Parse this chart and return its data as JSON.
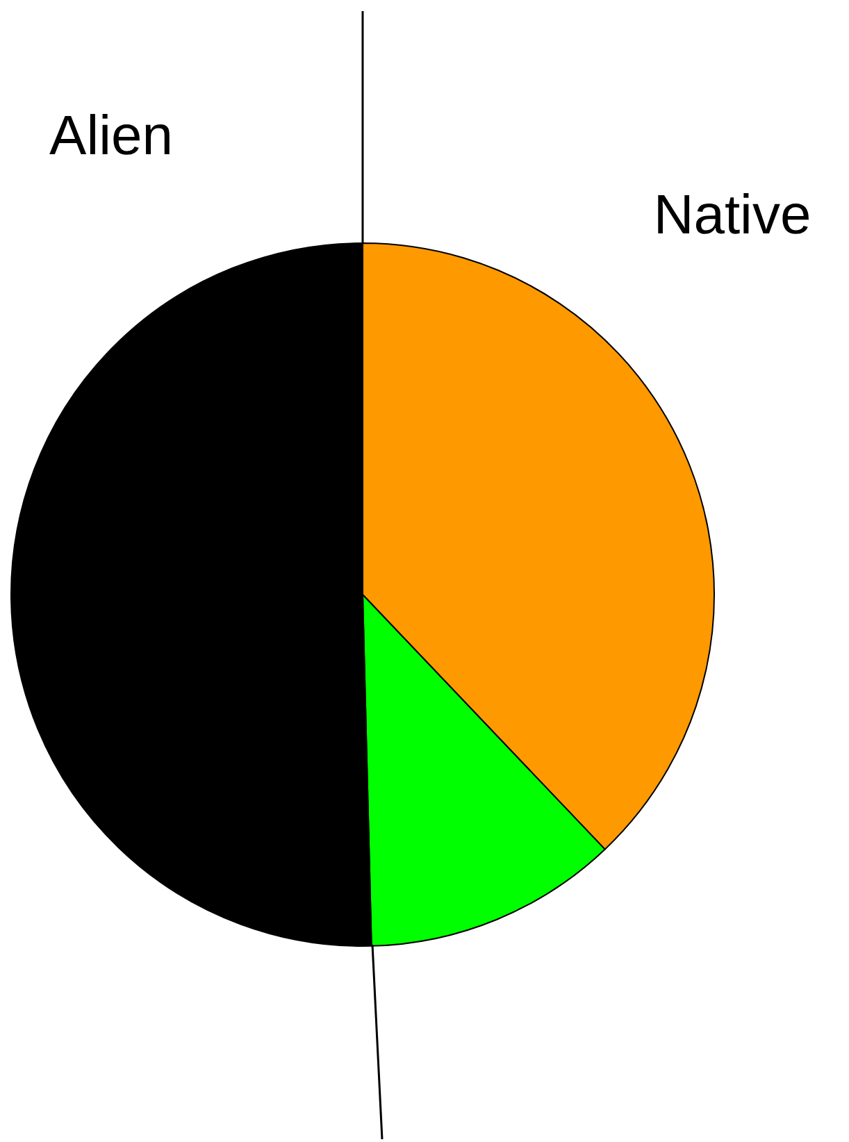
{
  "chart_data": {
    "type": "pie",
    "categories": [
      null,
      null,
      null
    ],
    "values": [
      37.9,
      11.7,
      50.4
    ],
    "colors": [
      "#ff9900",
      "#00ff00",
      "#000000"
    ],
    "annotations": [
      "Alien",
      "Native"
    ]
  }
}
